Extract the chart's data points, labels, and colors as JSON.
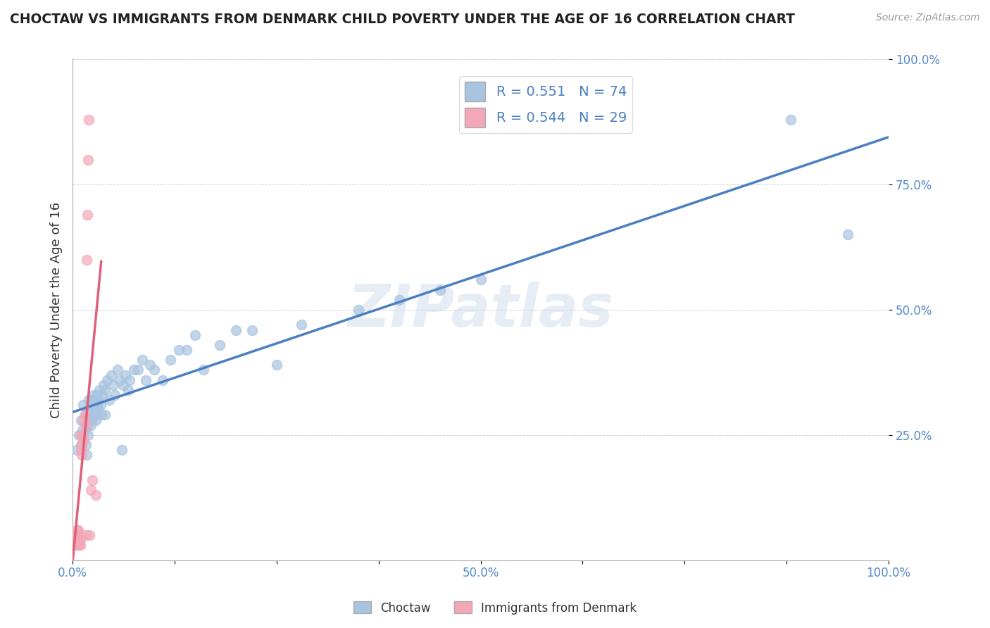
{
  "title": "CHOCTAW VS IMMIGRANTS FROM DENMARK CHILD POVERTY UNDER THE AGE OF 16 CORRELATION CHART",
  "source": "Source: ZipAtlas.com",
  "ylabel": "Child Poverty Under the Age of 16",
  "xlim": [
    0,
    1
  ],
  "ylim": [
    0,
    1
  ],
  "xticks": [
    0,
    0.125,
    0.25,
    0.375,
    0.5,
    0.625,
    0.75,
    0.875,
    1.0
  ],
  "xtick_labels": [
    "0.0%",
    "",
    "",
    "",
    "50.0%",
    "",
    "",
    "",
    "100.0%"
  ],
  "yticks": [
    0.25,
    0.5,
    0.75,
    1.0
  ],
  "ytick_labels": [
    "25.0%",
    "50.0%",
    "75.0%",
    "100.0%"
  ],
  "blue_color": "#a8c4e0",
  "pink_color": "#f4a7b9",
  "blue_line_color": "#4a7fc1",
  "pink_line_color": "#e0607a",
  "pink_dash_color": "#e8a0b0",
  "R_blue": 0.551,
  "N_blue": 74,
  "R_pink": 0.544,
  "N_pink": 29,
  "legend_label_blue": "Choctaw",
  "legend_label_pink": "Immigrants from Denmark",
  "watermark": "ZIPatlas",
  "blue_scatter_x": [
    0.005,
    0.008,
    0.01,
    0.01,
    0.012,
    0.013,
    0.015,
    0.015,
    0.016,
    0.017,
    0.018,
    0.018,
    0.019,
    0.02,
    0.02,
    0.021,
    0.022,
    0.022,
    0.023,
    0.023,
    0.024,
    0.025,
    0.025,
    0.026,
    0.027,
    0.028,
    0.028,
    0.029,
    0.03,
    0.03,
    0.031,
    0.032,
    0.033,
    0.034,
    0.035,
    0.036,
    0.038,
    0.04,
    0.04,
    0.042,
    0.045,
    0.047,
    0.05,
    0.052,
    0.055,
    0.058,
    0.06,
    0.062,
    0.065,
    0.068,
    0.07,
    0.075,
    0.08,
    0.085,
    0.09,
    0.095,
    0.1,
    0.11,
    0.12,
    0.13,
    0.14,
    0.15,
    0.16,
    0.18,
    0.2,
    0.22,
    0.25,
    0.28,
    0.35,
    0.4,
    0.45,
    0.5,
    0.88,
    0.95
  ],
  "blue_scatter_y": [
    0.22,
    0.25,
    0.28,
    0.23,
    0.26,
    0.31,
    0.29,
    0.26,
    0.23,
    0.21,
    0.3,
    0.27,
    0.25,
    0.32,
    0.28,
    0.3,
    0.31,
    0.27,
    0.32,
    0.29,
    0.28,
    0.31,
    0.29,
    0.33,
    0.3,
    0.32,
    0.28,
    0.29,
    0.33,
    0.31,
    0.3,
    0.32,
    0.34,
    0.31,
    0.29,
    0.33,
    0.35,
    0.29,
    0.34,
    0.36,
    0.32,
    0.37,
    0.35,
    0.33,
    0.38,
    0.36,
    0.22,
    0.35,
    0.37,
    0.34,
    0.36,
    0.38,
    0.38,
    0.4,
    0.36,
    0.39,
    0.38,
    0.36,
    0.4,
    0.42,
    0.42,
    0.45,
    0.38,
    0.43,
    0.46,
    0.46,
    0.39,
    0.47,
    0.5,
    0.52,
    0.54,
    0.56,
    0.88,
    0.65
  ],
  "pink_scatter_x": [
    0.003,
    0.004,
    0.005,
    0.005,
    0.006,
    0.007,
    0.007,
    0.008,
    0.008,
    0.009,
    0.009,
    0.01,
    0.01,
    0.011,
    0.011,
    0.012,
    0.013,
    0.014,
    0.015,
    0.016,
    0.016,
    0.017,
    0.018,
    0.019,
    0.02,
    0.021,
    0.022,
    0.024,
    0.028
  ],
  "pink_scatter_y": [
    0.05,
    0.04,
    0.06,
    0.03,
    0.05,
    0.04,
    0.06,
    0.03,
    0.05,
    0.04,
    0.03,
    0.22,
    0.25,
    0.23,
    0.21,
    0.25,
    0.28,
    0.24,
    0.29,
    0.27,
    0.05,
    0.6,
    0.69,
    0.8,
    0.88,
    0.05,
    0.14,
    0.16,
    0.13
  ],
  "figsize": [
    14.06,
    8.92
  ],
  "dpi": 100
}
